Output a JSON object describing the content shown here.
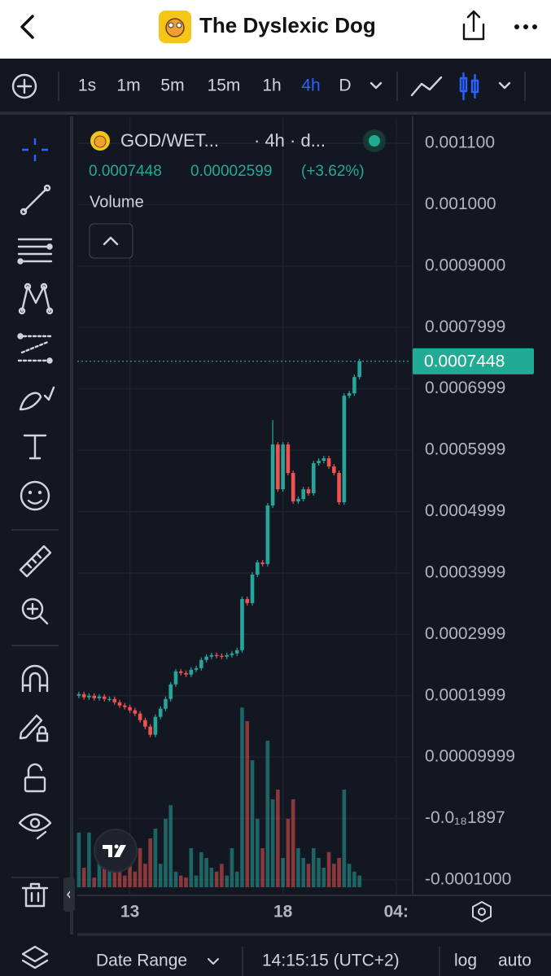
{
  "header": {
    "title": "The Dyslexic Dog"
  },
  "toolbar": {
    "intervals": [
      "1s",
      "1m",
      "5m",
      "15m",
      "1h",
      "4h",
      "D"
    ],
    "active": 5
  },
  "chart_data": {
    "type": "candlestick",
    "symbol": "GOD/WET...",
    "interval_label": "· 4h · d...",
    "change": 2.599e-05,
    "change_pct": "(+3.62%)",
    "indicator": "Volume",
    "up_color": "#26a69a",
    "down_color": "#ef5350",
    "grid": true,
    "log": false,
    "open": [
      0.0002,
      0.0002026,
      0.0001974,
      0.0002,
      0.000196,
      0.0001987,
      0.0001947,
      0.0001947,
      0.0001894,
      0.0001841,
      0.0001815,
      0.0001762,
      0.0001709,
      0.0001603,
      0.0001497,
      0.0001364,
      0.0001656,
      0.0001788,
      0.0001947,
      0.0002185,
      0.0002397,
      0.0002371,
      0.0002344,
      0.0002424,
      0.000245,
      0.0002583,
      0.0002636,
      0.0002662,
      0.0002649,
      0.0002636,
      0.0002662,
      0.0002689,
      0.0002742,
      0.0003576,
      0.000351,
      0.0003974,
      0.0004172,
      0.0004146,
      0.0005099,
      0.0006093,
      0.0005364,
      0.0006093,
      0.0005629,
      0.0005166,
      0.0005205,
      0.0005364,
      0.0005298,
      0.0005788,
      0.0005828,
      0.0005868,
      0.0005735,
      0.0005629,
      0.0005152,
      0.0006887,
      0.0006927,
      0.0007192
    ],
    "high": [
      0.0002066,
      0.0002066,
      0.000204,
      0.000204,
      0.0002027,
      0.0002027,
      0.0001987,
      0.0001987,
      0.0001934,
      0.0001881,
      0.0001855,
      0.0001802,
      0.0001749,
      0.0001643,
      0.0001537,
      0.0001696,
      0.0001828,
      0.0001987,
      0.0002225,
      0.0002437,
      0.0002437,
      0.0002411,
      0.0002464,
      0.000249,
      0.0002623,
      0.0002676,
      0.0002702,
      0.0002702,
      0.0002689,
      0.0002702,
      0.0002729,
      0.0002782,
      0.0003616,
      0.0003616,
      0.0004014,
      0.0004212,
      0.0004212,
      0.0005139,
      0.000649,
      0.0006133,
      0.0006133,
      0.0006133,
      0.0005669,
      0.0005245,
      0.0005404,
      0.0005404,
      0.0005828,
      0.0005868,
      0.0005908,
      0.0005908,
      0.0005775,
      0.0005669,
      0.0006927,
      0.0006967,
      0.0007232,
      0.0007488
    ],
    "low": [
      0.000196,
      0.0001934,
      0.0001934,
      0.000192,
      0.000192,
      0.0001907,
      0.0001907,
      0.0001854,
      0.0001801,
      0.0001775,
      0.0001722,
      0.0001669,
      0.0001563,
      0.0001457,
      0.0001324,
      0.0001324,
      0.0001616,
      0.0001748,
      0.0001907,
      0.0002145,
      0.0002331,
      0.0002304,
      0.0002304,
      0.0002384,
      0.000241,
      0.0002543,
      0.0002596,
      0.0002609,
      0.0002596,
      0.0002596,
      0.0002622,
      0.0002649,
      0.0002702,
      0.000347,
      0.000347,
      0.0003934,
      0.0004106,
      0.0004106,
      0.0005059,
      0.0005324,
      0.0005324,
      0.0005589,
      0.0005126,
      0.0005126,
      0.0005165,
      0.0005258,
      0.0005258,
      0.0005748,
      0.0005788,
      0.0005695,
      0.0005589,
      0.0005112,
      0.0005112,
      0.0006847,
      0.0006887,
      0.0007152
    ],
    "close": [
      0.0002026,
      0.0001974,
      0.0002,
      0.000196,
      0.0001987,
      0.0001947,
      0.0001947,
      0.0001894,
      0.0001841,
      0.0001815,
      0.0001762,
      0.0001709,
      0.0001603,
      0.0001497,
      0.0001364,
      0.0001656,
      0.0001788,
      0.0001947,
      0.0002185,
      0.0002397,
      0.0002371,
      0.0002344,
      0.0002424,
      0.000245,
      0.0002583,
      0.0002636,
      0.0002662,
      0.0002649,
      0.0002636,
      0.0002662,
      0.0002689,
      0.0002742,
      0.0003576,
      0.000351,
      0.0003974,
      0.0004172,
      0.0004146,
      0.0005099,
      0.0006093,
      0.0005364,
      0.0006093,
      0.0005629,
      0.0005166,
      0.0005205,
      0.0005364,
      0.0005298,
      0.0005788,
      0.0005828,
      0.0005868,
      0.0005735,
      0.0005629,
      0.0005152,
      0.0006887,
      0.0006927,
      0.0007192,
      0.0007448
    ],
    "volume": [
      28,
      10,
      28,
      5,
      25,
      10,
      15,
      8,
      22,
      6,
      18,
      8,
      20,
      12,
      25,
      30,
      12,
      35,
      42,
      8,
      6,
      5,
      20,
      6,
      18,
      15,
      10,
      8,
      12,
      6,
      20,
      8,
      92,
      85,
      65,
      35,
      20,
      75,
      45,
      50,
      15,
      35,
      45,
      20,
      15,
      12,
      20,
      15,
      10,
      18,
      12,
      15,
      50,
      12,
      8,
      6
    ],
    "ylim": [
      -0.0001186,
      0.0011411
    ],
    "yticks": [
      {
        "value": 0.0011,
        "label": "0.001100"
      },
      {
        "value": 0.001,
        "label": "0.001000"
      },
      {
        "value": 0.0009,
        "label": "0.0009000"
      },
      {
        "value": 0.0008,
        "label": "0.0007999"
      },
      {
        "value": 0.0007,
        "label": "0.0006999"
      },
      {
        "value": 0.0006,
        "label": "0.0005999"
      },
      {
        "value": 0.0005,
        "label": "0.0004999"
      },
      {
        "value": 0.0004,
        "label": "0.0003999"
      },
      {
        "value": 0.0003,
        "label": "0.0002999"
      },
      {
        "value": 0.0002,
        "label": "0.0001999"
      },
      {
        "value": 0.0001,
        "label": "0.00009999"
      },
      {
        "value": -1.897e-19,
        "label": "-0.0₁₈1897"
      },
      {
        "value": -0.0001,
        "label": "-0.0001000"
      }
    ],
    "xlim": [
      -0.3,
      65.1
    ],
    "xticks": [
      {
        "value": 10,
        "label": "13"
      },
      {
        "value": 40,
        "label": "18"
      },
      {
        "value": 62.2,
        "label": "04:"
      }
    ],
    "y2lim": [
      0,
      100
    ]
  },
  "bottom": {
    "date_range": "Date Range",
    "time": "14:15:15 (UTC+2)",
    "log": "log",
    "auto": "auto"
  }
}
